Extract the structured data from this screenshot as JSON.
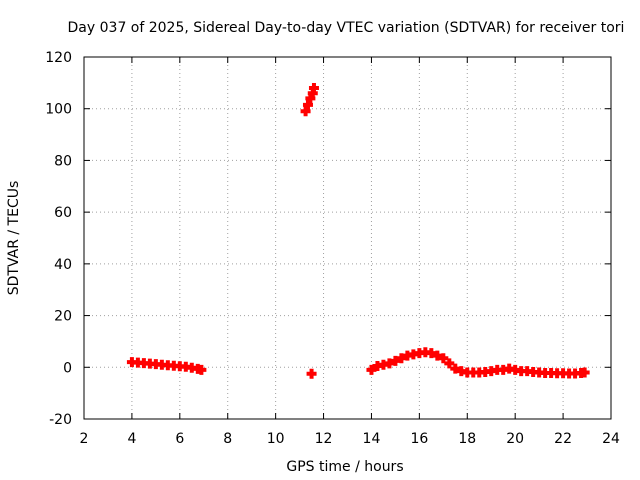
{
  "chart_data": {
    "type": "scatter",
    "title": "Day 037 of 2025, Sidereal Day-to-day VTEC variation (SDTVAR) for receiver tori",
    "xlabel": "GPS time / hours",
    "ylabel": "SDTVAR / TECUs",
    "xlim": [
      2,
      24
    ],
    "ylim": [
      -20,
      120
    ],
    "xticks": [
      2,
      4,
      6,
      8,
      10,
      12,
      14,
      16,
      18,
      20,
      22,
      24
    ],
    "yticks": [
      -20,
      0,
      20,
      40,
      60,
      80,
      100,
      120
    ],
    "grid": true,
    "series": [
      {
        "name": "SDTVAR",
        "color": "#ff0000",
        "marker": "plus",
        "x": [
          4.0,
          4.25,
          4.5,
          4.75,
          5.0,
          5.25,
          5.5,
          5.75,
          6.0,
          6.25,
          6.5,
          6.75,
          6.9,
          11.25,
          11.35,
          11.45,
          11.55,
          11.6,
          11.5,
          14.0,
          14.25,
          14.5,
          14.75,
          15.0,
          15.25,
          15.5,
          15.75,
          16.0,
          16.25,
          16.5,
          16.75,
          17.0,
          17.25,
          17.5,
          17.75,
          18.0,
          18.25,
          18.5,
          18.75,
          19.0,
          19.25,
          19.5,
          19.75,
          20.0,
          20.25,
          20.5,
          20.75,
          21.0,
          21.25,
          21.5,
          21.75,
          22.0,
          22.25,
          22.5,
          22.75,
          22.9
        ],
        "y": [
          2.0,
          1.8,
          1.6,
          1.4,
          1.2,
          1.0,
          0.8,
          0.6,
          0.4,
          0.2,
          -0.2,
          -0.6,
          -1.0,
          99,
          101.5,
          104,
          106,
          108,
          -2.5,
          -1.0,
          0.5,
          1.0,
          1.5,
          2.5,
          3.5,
          4.5,
          5.0,
          5.5,
          5.8,
          5.5,
          4.5,
          3.5,
          1.5,
          -0.5,
          -1.5,
          -2.0,
          -2.0,
          -2.0,
          -1.8,
          -1.5,
          -1.0,
          -1.0,
          -0.5,
          -1.0,
          -1.5,
          -1.5,
          -1.8,
          -2.0,
          -2.2,
          -2.2,
          -2.3,
          -2.3,
          -2.4,
          -2.4,
          -2.2,
          -2.0
        ]
      }
    ]
  }
}
